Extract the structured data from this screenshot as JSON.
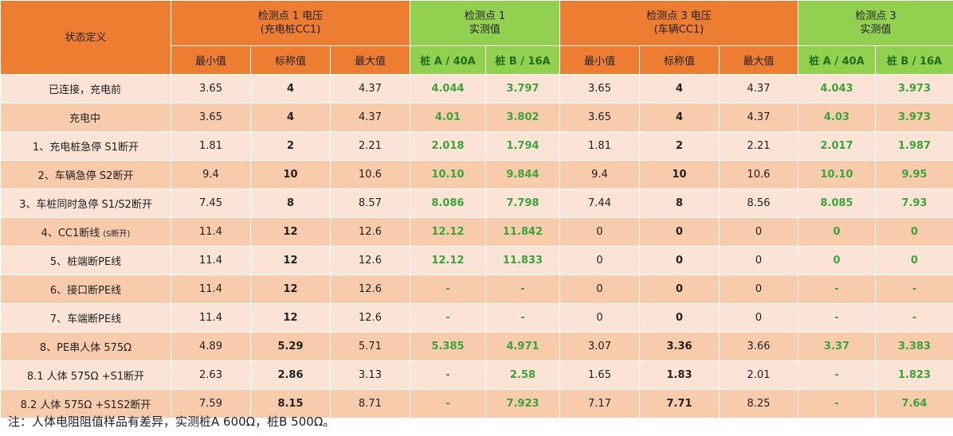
{
  "header": {
    "state_label": "状态定义",
    "group1_line1": "检测点 1 电压",
    "group1_line2": "(充电桩CC1)",
    "group2_line1": "检测点 1",
    "group2_line2": "实测值",
    "group3_line1": "检测点 3 电压",
    "group3_line2": "(车辆CC1)",
    "group4_line1": "检测点 3",
    "group4_line2": "实测值",
    "sub": [
      "最小值",
      "标称值",
      "最大值",
      "桩 A / 40A",
      "桩 B / 16A",
      "最小值",
      "标称值",
      "最大值",
      "桩 A / 40A",
      "桩 B / 16A"
    ]
  },
  "rows": [
    {
      "label": "已连接，充电前",
      "cells": [
        "3.65",
        "4",
        "4.37",
        "4.044",
        "3.797",
        "3.65",
        "4",
        "4.37",
        "4.043",
        "3.973"
      ]
    },
    {
      "label": "充电中",
      "cells": [
        "3.65",
        "4",
        "4.37",
        "4.01",
        "3.802",
        "3.65",
        "4",
        "4.37",
        "4.03",
        "3.973"
      ]
    },
    {
      "label": "1、充电桩急停 S1断开",
      "cells": [
        "1.81",
        "2",
        "2.21",
        "2.018",
        "1.794",
        "1.81",
        "2",
        "2.21",
        "2.017",
        "1.987"
      ]
    },
    {
      "label": "2、车辆急停 S2断开",
      "cells": [
        "9.4",
        "10",
        "10.6",
        "10.10",
        "9.844",
        "9.4",
        "10",
        "10.6",
        "10.10",
        "9.95"
      ]
    },
    {
      "label": "3、车桩同时急停 S1/S2断开",
      "cells": [
        "7.45",
        "8",
        "8.57",
        "8.086",
        "7.798",
        "7.44",
        "8",
        "8.56",
        "8.085",
        "7.93"
      ]
    },
    {
      "label": "4、CC1断线",
      "label_small": "(S断开)",
      "cells": [
        "11.4",
        "12",
        "12.6",
        "12.12",
        "11.842",
        "0",
        "0",
        "0",
        "0",
        "0"
      ]
    },
    {
      "label": "5、桩端断PE线",
      "cells": [
        "11.4",
        "12",
        "12.6",
        "12.12",
        "11.833",
        "0",
        "0",
        "0",
        "0",
        "0"
      ]
    },
    {
      "label": "6、接口断PE线",
      "cells": [
        "11.4",
        "12",
        "12.6",
        "-",
        "-",
        "0",
        "0",
        "0",
        "-",
        "-"
      ]
    },
    {
      "label": "7、车端断PE线",
      "cells": [
        "11.4",
        "12",
        "12.6",
        "-",
        "-",
        "0",
        "0",
        "0",
        "-",
        "-"
      ]
    },
    {
      "label": "8、PE串人体 575Ω",
      "cells": [
        "4.89",
        "5.29",
        "5.71",
        "5.385",
        "4.971",
        "3.07",
        "3.36",
        "3.66",
        "3.37",
        "3.383"
      ]
    },
    {
      "label": "8.1 人体 575Ω +S1断开",
      "cells": [
        "2.63",
        "2.86",
        "3.13",
        "-",
        "2.58",
        "1.65",
        "1.83",
        "2.01",
        "-",
        "1.823"
      ]
    },
    {
      "label": "8.2 人体 575Ω +S1S2断开",
      "cells": [
        "7.59",
        "8.15",
        "8.71",
        "-",
        "7.923",
        "7.17",
        "7.71",
        "8.25",
        "-",
        "7.64"
      ]
    }
  ],
  "note": "注：人体电阻阻值样品有差异，实测桩A 600Ω，桩B 500Ω。",
  "colors": {
    "header_orange": "#ed7d31",
    "header_green": "#92d050",
    "row_light": "#fbe4d5",
    "row_dark": "#f8cbad",
    "value_green": "#3aa53a"
  }
}
